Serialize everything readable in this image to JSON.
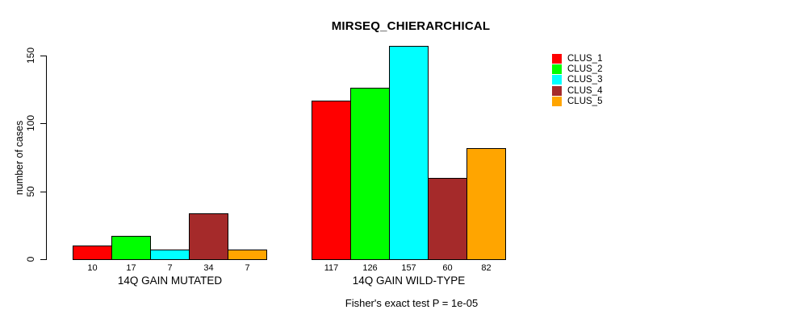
{
  "chart_data": {
    "type": "bar",
    "title": "MIRSEQ_CHIERARCHICAL",
    "ylabel": "number of cases",
    "xlabel": "",
    "ylim": [
      0,
      150
    ],
    "yticks": [
      0,
      50,
      100,
      150
    ],
    "grid": false,
    "categories": [
      "14Q GAIN MUTATED",
      "14Q GAIN WILD-TYPE"
    ],
    "series": [
      {
        "name": "CLUS_1",
        "color": "#FF0000",
        "values": [
          10,
          117
        ]
      },
      {
        "name": "CLUS_2",
        "color": "#00FF00",
        "values": [
          17,
          126
        ]
      },
      {
        "name": "CLUS_3",
        "color": "#00FFFF",
        "values": [
          7,
          157
        ]
      },
      {
        "name": "CLUS_4",
        "color": "#A52A2A",
        "values": [
          34,
          60
        ]
      },
      {
        "name": "CLUS_5",
        "color": "#FFA500",
        "values": [
          7,
          82
        ]
      }
    ],
    "bar_value_labels": {
      "14Q GAIN MUTATED": [
        10,
        17,
        7,
        34,
        7
      ],
      "14Q GAIN WILD-TYPE": [
        117,
        126,
        157,
        60,
        82
      ]
    },
    "legend": {
      "position": "top-right",
      "entries": [
        "CLUS_1",
        "CLUS_2",
        "CLUS_3",
        "CLUS_4",
        "CLUS_5"
      ]
    },
    "footnote": "Fisher's exact test P = 1e-05",
    "axis_color": "#000000",
    "bar_border_color": "#000000"
  }
}
